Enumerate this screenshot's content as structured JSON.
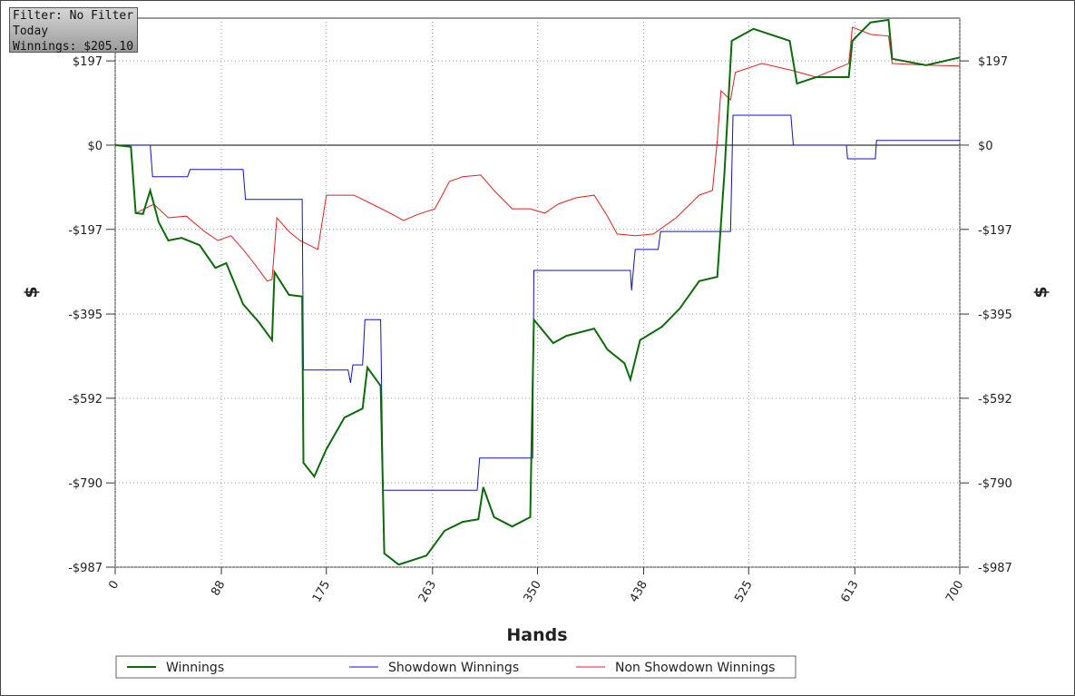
{
  "info": {
    "filter": "Filter: No Filter",
    "period": "Today",
    "winnings": "Winnings: $205.10"
  },
  "chart_data": {
    "type": "line",
    "x_label": "Hands",
    "y_label": "$",
    "y2_label": "$",
    "grid": true,
    "xlim": [
      0,
      700
    ],
    "xticks": [
      0,
      88,
      175,
      263,
      350,
      438,
      525,
      613,
      700
    ],
    "ylim": [
      -987,
      297
    ],
    "yticks": [
      {
        "value": -987,
        "label": "-$987"
      },
      {
        "value": -790,
        "label": "-$790"
      },
      {
        "value": -592,
        "label": "-$592"
      },
      {
        "value": -395,
        "label": "-$395"
      },
      {
        "value": -197,
        "label": "-$197"
      },
      {
        "value": 0,
        "label": "$0"
      },
      {
        "value": 197,
        "label": "$197"
      }
    ],
    "series": [
      {
        "name": "Winnings",
        "color": "#0b6b0b",
        "x": [
          0,
          13,
          17,
          23,
          29,
          36,
          44,
          55,
          70,
          83,
          92,
          106,
          119,
          130,
          132,
          144,
          155,
          156,
          165,
          175,
          190,
          205,
          209,
          220,
          223,
          235,
          258,
          273,
          288,
          301,
          305,
          314,
          329,
          344,
          347,
          363,
          374,
          397,
          408,
          422,
          427,
          435,
          453,
          468,
          484,
          499,
          505,
          511,
          529,
          559,
          565,
          581,
          608,
          611,
          626,
          641,
          644,
          672,
          700
        ],
        "values": [
          0,
          -4,
          -159,
          -161,
          -106,
          -180,
          -223,
          -217,
          -234,
          -287,
          -276,
          -372,
          -414,
          -456,
          -297,
          -350,
          -354,
          -743,
          -775,
          -711,
          -637,
          -616,
          -520,
          -563,
          -955,
          -981,
          -960,
          -902,
          -881,
          -875,
          -800,
          -870,
          -892,
          -870,
          -408,
          -463,
          -446,
          -429,
          -478,
          -510,
          -548,
          -456,
          -425,
          -382,
          -318,
          -308,
          -64,
          244,
          272,
          244,
          144,
          159,
          159,
          244,
          287,
          293,
          202,
          187,
          205
        ]
      },
      {
        "name": "Showdown Winnings",
        "color": "#1010c8",
        "x": [
          0,
          29,
          31,
          60,
          62,
          106,
          108,
          155,
          156,
          193,
          195,
          197,
          205,
          207,
          220,
          222,
          300,
          302,
          346,
          347,
          427,
          428,
          431,
          450,
          452,
          510,
          512,
          560,
          562,
          606,
          607,
          630,
          631,
          700
        ],
        "values": [
          0,
          0,
          -74,
          -74,
          -57,
          -57,
          -127,
          -127,
          -526,
          -526,
          -556,
          -514,
          -514,
          -408,
          -408,
          -807,
          -807,
          -732,
          -732,
          -293,
          -293,
          -340,
          -244,
          -244,
          -202,
          -202,
          70,
          70,
          0,
          0,
          -32,
          -32,
          11,
          11
        ]
      },
      {
        "name": "Non Showdown Winnings",
        "color": "#e02020",
        "x": [
          0,
          13,
          17,
          32,
          44,
          59,
          74,
          85,
          96,
          106,
          115,
          126,
          130,
          134,
          144,
          153,
          168,
          175,
          198,
          213,
          228,
          239,
          250,
          265,
          277,
          288,
          303,
          314,
          329,
          344,
          356,
          367,
          382,
          397,
          408,
          416,
          431,
          446,
          465,
          484,
          495,
          499,
          502,
          510,
          514,
          536,
          562,
          581,
          608,
          611,
          626,
          641,
          644,
          672,
          700
        ],
        "values": [
          0,
          -4,
          -159,
          -138,
          -170,
          -166,
          -202,
          -223,
          -212,
          -244,
          -276,
          -318,
          -314,
          -170,
          -202,
          -223,
          -244,
          -117,
          -117,
          -138,
          -159,
          -176,
          -163,
          -149,
          -85,
          -74,
          -70,
          -106,
          -149,
          -149,
          -159,
          -138,
          -123,
          -117,
          -166,
          -208,
          -212,
          -208,
          -170,
          -117,
          -106,
          11,
          127,
          106,
          170,
          191,
          174,
          159,
          191,
          276,
          259,
          255,
          191,
          187,
          185
        ]
      }
    ]
  }
}
